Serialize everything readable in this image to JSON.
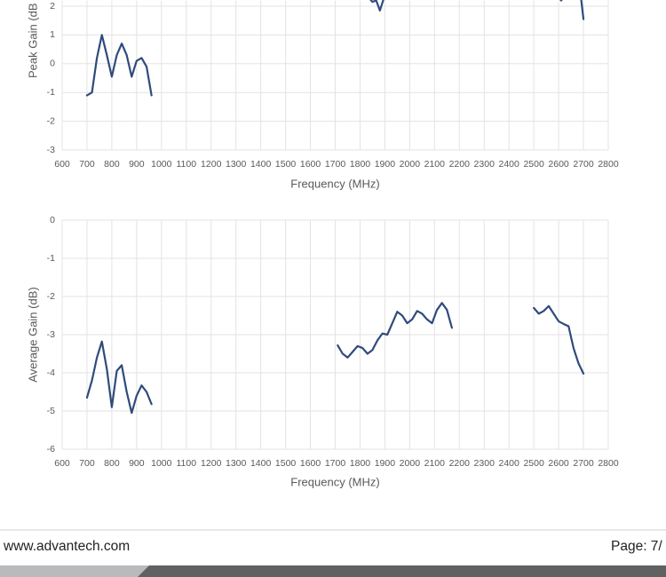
{
  "chart_data": [
    {
      "type": "line",
      "y_label": "Peak Gain (dB",
      "x_label": "Frequency (MHz)",
      "xlim": [
        600,
        2800
      ],
      "xticks": [
        600,
        700,
        800,
        900,
        1000,
        1100,
        1200,
        1300,
        1400,
        1500,
        1600,
        1700,
        1800,
        1900,
        2000,
        2100,
        2200,
        2300,
        2400,
        2500,
        2600,
        2700,
        2800
      ],
      "ylim": [
        -3,
        2.2
      ],
      "yticks": [
        -3,
        -2,
        -1,
        0,
        1,
        2
      ],
      "grid": true,
      "series": [
        {
          "color": "#2f4b7c",
          "x": [
            700,
            720,
            740,
            760,
            780,
            800,
            820,
            840,
            860,
            880,
            900,
            920,
            940,
            960
          ],
          "values": [
            -1.1,
            -1.0,
            0.2,
            1.0,
            0.3,
            -0.45,
            0.3,
            0.7,
            0.3,
            -0.45,
            0.1,
            0.2,
            -0.1,
            -1.1
          ]
        },
        {
          "color": "#2f4b7c",
          "x": [
            1840,
            1850,
            1865,
            1880,
            1895
          ],
          "values": [
            2.25,
            2.15,
            2.2,
            1.85,
            2.25
          ]
        },
        {
          "color": "#2f4b7c",
          "x": [
            2600,
            2610,
            2620,
            2690,
            2700
          ],
          "values": [
            2.3,
            2.2,
            2.3,
            2.3,
            1.55
          ]
        }
      ]
    },
    {
      "type": "line",
      "y_label": "Average Gain (dB)",
      "x_label": "Frequency (MHz)",
      "xlim": [
        600,
        2800
      ],
      "xticks": [
        600,
        700,
        800,
        900,
        1000,
        1100,
        1200,
        1300,
        1400,
        1500,
        1600,
        1700,
        1800,
        1900,
        2000,
        2100,
        2200,
        2300,
        2400,
        2500,
        2600,
        2700,
        2800
      ],
      "ylim": [
        -6,
        0
      ],
      "yticks": [
        -6,
        -5,
        -4,
        -3,
        -2,
        -1,
        0
      ],
      "grid": true,
      "series": [
        {
          "color": "#2f4b7c",
          "x": [
            700,
            720,
            740,
            760,
            780,
            800,
            820,
            840,
            860,
            880,
            900,
            920,
            940,
            960
          ],
          "values": [
            -4.65,
            -4.2,
            -3.6,
            -3.18,
            -3.9,
            -4.9,
            -3.95,
            -3.8,
            -4.5,
            -5.05,
            -4.6,
            -4.33,
            -4.5,
            -4.82
          ]
        },
        {
          "color": "#2f4b7c",
          "x": [
            1710,
            1730,
            1750,
            1770,
            1790,
            1810,
            1830,
            1850,
            1870,
            1890,
            1910,
            1930,
            1950,
            1970,
            1990,
            2010,
            2030,
            2050,
            2070,
            2090,
            2110,
            2130,
            2150,
            2170
          ],
          "values": [
            -3.28,
            -3.5,
            -3.6,
            -3.45,
            -3.3,
            -3.35,
            -3.5,
            -3.4,
            -3.15,
            -2.97,
            -3.0,
            -2.7,
            -2.4,
            -2.5,
            -2.7,
            -2.6,
            -2.38,
            -2.45,
            -2.6,
            -2.7,
            -2.35,
            -2.17,
            -2.35,
            -2.82
          ]
        },
        {
          "color": "#2f4b7c",
          "x": [
            2500,
            2520,
            2540,
            2560,
            2580,
            2600,
            2620,
            2640,
            2660,
            2680,
            2700
          ],
          "values": [
            -2.3,
            -2.45,
            -2.38,
            -2.25,
            -2.45,
            -2.65,
            -2.72,
            -2.78,
            -3.35,
            -3.75,
            -4.02
          ]
        }
      ]
    }
  ],
  "footer": {
    "website": "www.advantech.com",
    "page": "Page: 7/"
  }
}
